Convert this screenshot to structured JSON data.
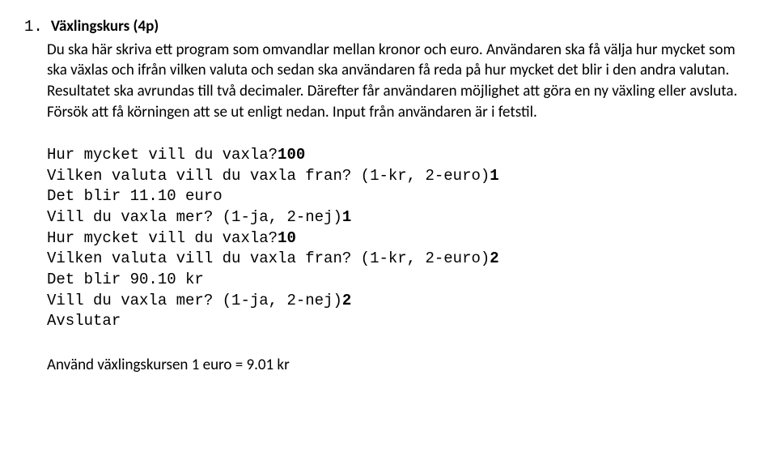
{
  "list_number": "1.",
  "title": "Växlingskurs (4p)",
  "paragraph": "Du ska här skriva ett program som omvandlar mellan kronor och euro. Användaren ska få välja hur mycket som ska växlas och ifrån vilken valuta och sedan ska användaren få reda på hur mycket det blir i den andra valutan. Resultatet ska avrundas till två decimaler. Därefter får användaren möjlighet att göra en ny växling eller avsluta. Försök att få körningen att se ut enligt nedan. Input från användaren är i fetstil.",
  "run": {
    "l1a": "Hur mycket vill du vaxla?",
    "l1b": "100",
    "l2a": "Vilken valuta vill du vaxla fran? (1-kr, 2-euro)",
    "l2b": "1",
    "l3": "Det blir 11.10 euro",
    "l4a": "Vill du vaxla mer? (1-ja, 2-nej)",
    "l4b": "1",
    "l5a": "Hur mycket vill du vaxla?",
    "l5b": "10",
    "l6a": "Vilken valuta vill du vaxla fran? (1-kr, 2-euro)",
    "l6b": "2",
    "l7": "Det blir 90.10 kr",
    "l8a": "Vill du vaxla mer? (1-ja, 2-nej)",
    "l8b": "2",
    "l9": "Avslutar"
  },
  "footer": "Använd växlingskursen 1 euro = 9.01 kr"
}
